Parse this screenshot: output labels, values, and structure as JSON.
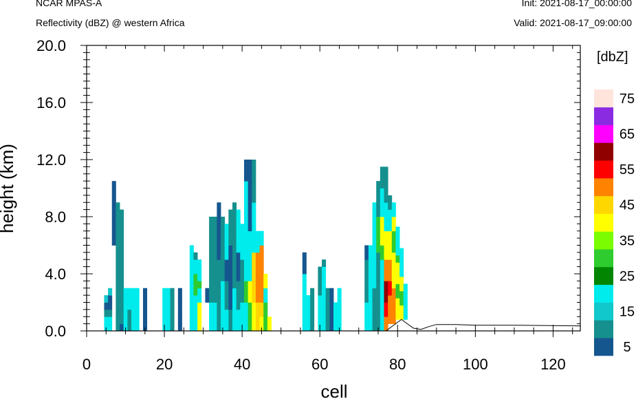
{
  "header": {
    "model": "NCAR MPAS-A",
    "field": "Reflectivity (dBZ) @ western Africa",
    "init": "Init: 2021-08-17_00:00:00",
    "valid": "Valid: 2021-08-17_09:00:00"
  },
  "chart_data": {
    "type": "heatmap",
    "xlabel": "cell",
    "ylabel": "height (km)",
    "xlim": [
      0,
      127
    ],
    "ylim": [
      0,
      20
    ],
    "xticks": [
      0,
      20,
      40,
      60,
      80,
      100,
      120
    ],
    "yticks": [
      0,
      4,
      8,
      12,
      16,
      20
    ],
    "ytick_labels": [
      "0.0",
      "4.0",
      "8.0",
      "12.0",
      "16.0",
      "20.0"
    ],
    "cell_height_km": 0.5,
    "colorbar": {
      "units": "[dbZ]",
      "levels": [
        0,
        5,
        10,
        15,
        20,
        25,
        30,
        35,
        40,
        45,
        50,
        55,
        60,
        65,
        70,
        75,
        80
      ],
      "labels": [
        "5",
        "15",
        "25",
        "35",
        "45",
        "55",
        "65",
        "75"
      ],
      "label_values": [
        5,
        15,
        25,
        35,
        45,
        55,
        65,
        75
      ],
      "colors": [
        "#16568f",
        "#15908e",
        "#11c8cc",
        "#00ecec",
        "#028602",
        "#2ecc2e",
        "#7cfc00",
        "#ffff00",
        "#ffd700",
        "#ff8200",
        "#ff0000",
        "#910000",
        "#ff00ff",
        "#8a2be2",
        "#ffe4dc"
      ]
    },
    "terrain": {
      "x": [
        0,
        77,
        81,
        84,
        86,
        88,
        90,
        95,
        100,
        110,
        127
      ],
      "y": [
        0,
        0,
        0.8,
        0.2,
        0.1,
        0.3,
        0.45,
        0.45,
        0.4,
        0.4,
        0.35
      ]
    },
    "columns": [
      {
        "x": 5,
        "bottom": 0,
        "levels": [
          15,
          15,
          5,
          1,
          12
        ]
      },
      {
        "x": 6,
        "bottom": 0,
        "levels": [
          15,
          15,
          5,
          1,
          1,
          12
        ]
      },
      {
        "x": 7,
        "bottom": 6.0,
        "levels": [
          1,
          1,
          1,
          1,
          1,
          1,
          1,
          1,
          1
        ]
      },
      {
        "x": 8,
        "bottom": 0,
        "levels": [
          5,
          5,
          5,
          5,
          5,
          5,
          5,
          5,
          5,
          5,
          5,
          5,
          5,
          5,
          5,
          5,
          5,
          5
        ]
      },
      {
        "x": 9,
        "bottom": 0,
        "levels": [
          1,
          5,
          5,
          5,
          5,
          5,
          5,
          5,
          5,
          5,
          5,
          5,
          5,
          5,
          5,
          5,
          5
        ]
      },
      {
        "x": 10,
        "bottom": 0,
        "levels": [
          15,
          15,
          15,
          15,
          15,
          15
        ]
      },
      {
        "x": 11,
        "bottom": 0,
        "levels": [
          5,
          5,
          5,
          15,
          15,
          15
        ]
      },
      {
        "x": 12,
        "bottom": 0,
        "levels": [
          15,
          15,
          15,
          15,
          15,
          15
        ]
      },
      {
        "x": 13,
        "bottom": 0,
        "levels": [
          15,
          15,
          15,
          15,
          15,
          15
        ]
      },
      {
        "x": 15,
        "bottom": 0,
        "levels": [
          1,
          1,
          1,
          1,
          1,
          1
        ]
      },
      {
        "x": 20,
        "bottom": 0,
        "levels": [
          15,
          15,
          15,
          15,
          15,
          15
        ]
      },
      {
        "x": 21,
        "bottom": 0,
        "levels": [
          15,
          15,
          15,
          15,
          15,
          15
        ]
      },
      {
        "x": 22,
        "bottom": 0,
        "levels": [
          5,
          5,
          5,
          5,
          5,
          5
        ]
      },
      {
        "x": 24,
        "bottom": 0,
        "levels": [
          1,
          1,
          1,
          1,
          1,
          1
        ]
      },
      {
        "x": 27,
        "bottom": 0,
        "levels": [
          15,
          15,
          15,
          15,
          15,
          15,
          15,
          15,
          15,
          15,
          15,
          15
        ]
      },
      {
        "x": 28,
        "bottom": 0,
        "levels": [
          15,
          15,
          15,
          15,
          15,
          25,
          25,
          25,
          15,
          15,
          5
        ]
      },
      {
        "x": 29,
        "bottom": 0,
        "levels": [
          35,
          35,
          35,
          35,
          15,
          15,
          25,
          15,
          15,
          15
        ]
      },
      {
        "x": 31,
        "bottom": 2.0,
        "levels": [
          1,
          1
        ]
      },
      {
        "x": 32,
        "bottom": 0,
        "levels": [
          15,
          15,
          15,
          15,
          5,
          5,
          5,
          5,
          5,
          5,
          5,
          5,
          5,
          5,
          5,
          5
        ]
      },
      {
        "x": 33,
        "bottom": 0,
        "levels": [
          15,
          15,
          15,
          15,
          5,
          5,
          5,
          5,
          5,
          5,
          5,
          5,
          5,
          5,
          5,
          5
        ]
      },
      {
        "x": 34,
        "bottom": 0,
        "levels": [
          5,
          5,
          5,
          5,
          5,
          5,
          5,
          5,
          5,
          5,
          1,
          1,
          1,
          1,
          1,
          1,
          1,
          1
        ]
      },
      {
        "x": 35,
        "bottom": 0,
        "levels": [
          15,
          15,
          15,
          15,
          15,
          15,
          15,
          5,
          5,
          5,
          5,
          5,
          5,
          5,
          5,
          5
        ]
      },
      {
        "x": 36,
        "bottom": 0,
        "levels": [
          15,
          15,
          15,
          5,
          5,
          5,
          5,
          1,
          1,
          1,
          15,
          15,
          15,
          15,
          15
        ]
      },
      {
        "x": 37,
        "bottom": 0,
        "levels": [
          5,
          5,
          5,
          1,
          1,
          1,
          1,
          1,
          1,
          1,
          1,
          1,
          5,
          5,
          5,
          5,
          5
        ]
      },
      {
        "x": 38,
        "bottom": 0,
        "levels": [
          15,
          15,
          15,
          15,
          15,
          15,
          5,
          5,
          5,
          5,
          5,
          5,
          5,
          5,
          5,
          5,
          5,
          5
        ]
      },
      {
        "x": 39,
        "bottom": 0,
        "levels": [
          15,
          15,
          15,
          5,
          5,
          5,
          5,
          1,
          1,
          1,
          1,
          15,
          15,
          15,
          15,
          15,
          15
        ]
      },
      {
        "x": 40,
        "bottom": 0,
        "levels": [
          15,
          15,
          15,
          15,
          5,
          5,
          5,
          5,
          5,
          5,
          15,
          15,
          15,
          15,
          15
        ]
      },
      {
        "x": 41,
        "bottom": 0,
        "levels": [
          15,
          15,
          15,
          15,
          25,
          25,
          25,
          15,
          15,
          15,
          15,
          15,
          15,
          15,
          15,
          15,
          15,
          15,
          15,
          15,
          15,
          1,
          1,
          1
        ]
      },
      {
        "x": 42,
        "bottom": 0,
        "levels": [
          25,
          25,
          25,
          25,
          35,
          35,
          35,
          15,
          15,
          15,
          15,
          15,
          15,
          15,
          1,
          1,
          1,
          1,
          1,
          1,
          1,
          1,
          1,
          1
        ]
      },
      {
        "x": 43,
        "bottom": 0,
        "levels": [
          35,
          35,
          35,
          35,
          40,
          40,
          40,
          40,
          40,
          40,
          40,
          15,
          15,
          15,
          15,
          15,
          15,
          15,
          5,
          5,
          5,
          5,
          5,
          5
        ]
      },
      {
        "x": 44,
        "bottom": 0,
        "levels": [
          40,
          40,
          40,
          40,
          45,
          45,
          45,
          45,
          45,
          45,
          45,
          15,
          15,
          15
        ]
      },
      {
        "x": 45,
        "bottom": 0,
        "levels": [
          35,
          35,
          40,
          40,
          45,
          45,
          45,
          45,
          45,
          45,
          45,
          45,
          15,
          15
        ]
      },
      {
        "x": 46,
        "bottom": 0,
        "levels": [
          25,
          25,
          25,
          25,
          15,
          15,
          35,
          35
        ]
      },
      {
        "x": 47,
        "bottom": 0,
        "levels": [
          35,
          35
        ]
      },
      {
        "x": 56,
        "bottom": 0,
        "levels": [
          15,
          15,
          15,
          15,
          15,
          15,
          15,
          15,
          1,
          1,
          1
        ]
      },
      {
        "x": 57,
        "bottom": 0,
        "levels": [
          15,
          15,
          15,
          15,
          15
        ]
      },
      {
        "x": 58,
        "bottom": 0,
        "levels": [
          5,
          5,
          5,
          5,
          5,
          5
        ]
      },
      {
        "x": 60,
        "bottom": 0,
        "levels": [
          15,
          15,
          15,
          15,
          15,
          5,
          5,
          5,
          5
        ]
      },
      {
        "x": 61,
        "bottom": 0,
        "levels": [
          15,
          15,
          15,
          15,
          15,
          15,
          15,
          15,
          15,
          5
        ]
      },
      {
        "x": 62,
        "bottom": 0,
        "levels": [
          5,
          5,
          5,
          5,
          5,
          5
        ]
      },
      {
        "x": 63,
        "bottom": 0,
        "levels": [
          1,
          1,
          1,
          1,
          1,
          1
        ]
      },
      {
        "x": 64,
        "bottom": 0,
        "levels": [
          15,
          15,
          15,
          15
        ]
      },
      {
        "x": 65,
        "bottom": 0,
        "levels": [
          15,
          15,
          15,
          15,
          15,
          15
        ]
      },
      {
        "x": 72,
        "bottom": 0,
        "levels": [
          15,
          15,
          15,
          15,
          5,
          5,
          5,
          5,
          5,
          5,
          1,
          1
        ]
      },
      {
        "x": 73,
        "bottom": 0,
        "levels": [
          15,
          15,
          15,
          15,
          15,
          15,
          15,
          15,
          15,
          15,
          15,
          15
        ]
      },
      {
        "x": 74,
        "bottom": 0,
        "levels": [
          5,
          5,
          5,
          5,
          5,
          5,
          15,
          15,
          15,
          15,
          15,
          15,
          15,
          15,
          15,
          15,
          15,
          15
        ]
      },
      {
        "x": 75,
        "bottom": 0,
        "levels": [
          5,
          5,
          5,
          5,
          5,
          5,
          5,
          5,
          5,
          5,
          5,
          25,
          25,
          25,
          25,
          25,
          5,
          5,
          5,
          5,
          5
        ]
      },
      {
        "x": 76,
        "bottom": 0,
        "levels": [
          15,
          15,
          15,
          15,
          15,
          15,
          15,
          15,
          15,
          15,
          25,
          25,
          35,
          35,
          35,
          35,
          15,
          15,
          15,
          15,
          5,
          5,
          5
        ]
      },
      {
        "x": 77,
        "bottom": 0,
        "levels": [
          45,
          45,
          50,
          50,
          55,
          55,
          55,
          45,
          45,
          45,
          35,
          35,
          35,
          35,
          15,
          15,
          15,
          15,
          5,
          5,
          5,
          5,
          5
        ]
      },
      {
        "x": 78,
        "bottom": 0.5,
        "levels": [
          45,
          45,
          45,
          45,
          50,
          50,
          45,
          45,
          45,
          35,
          35,
          35,
          35,
          15,
          15,
          15,
          5,
          5
        ]
      },
      {
        "x": 79,
        "bottom": 0.5,
        "levels": [
          45,
          45,
          45,
          45,
          45,
          35,
          35,
          35,
          35,
          35,
          25,
          25,
          25,
          35,
          35,
          15,
          15
        ]
      },
      {
        "x": 80,
        "bottom": 0.8,
        "levels": [
          35,
          35,
          35,
          25,
          25,
          35,
          35,
          35,
          25,
          15,
          15,
          15,
          15
        ]
      },
      {
        "x": 81,
        "bottom": 0.8,
        "levels": [
          35,
          35,
          25,
          25,
          35,
          35,
          15,
          15,
          15,
          15
        ]
      },
      {
        "x": 82,
        "bottom": 0.8,
        "levels": [
          15,
          15,
          15,
          15,
          15
        ]
      }
    ]
  }
}
